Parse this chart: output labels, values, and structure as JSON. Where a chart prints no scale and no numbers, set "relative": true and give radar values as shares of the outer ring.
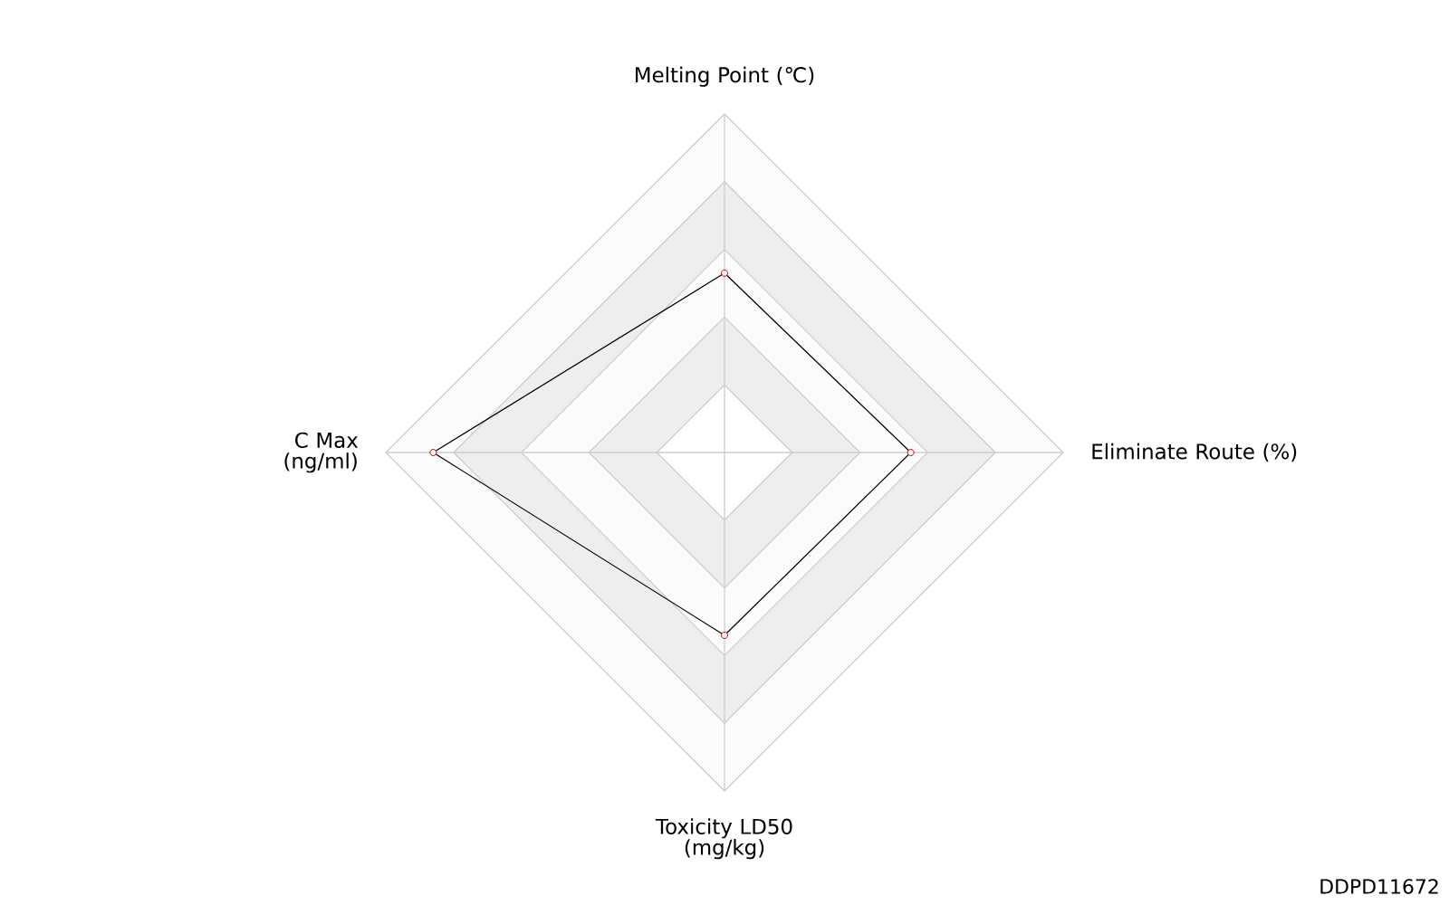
{
  "chart_data": {
    "type": "radar",
    "categories": [
      "Melting Point (℃)",
      "Eliminate Route (%)",
      "Toxicity LD50 (mg/kg)",
      "C Max (ng/ml)"
    ],
    "relative": true,
    "series": [
      {
        "color": "#000000",
        "values": [
          0.53,
          0.55,
          0.54,
          0.86
        ]
      }
    ],
    "marker": "circle",
    "annotations": [
      "DDPD11672"
    ]
  }
}
